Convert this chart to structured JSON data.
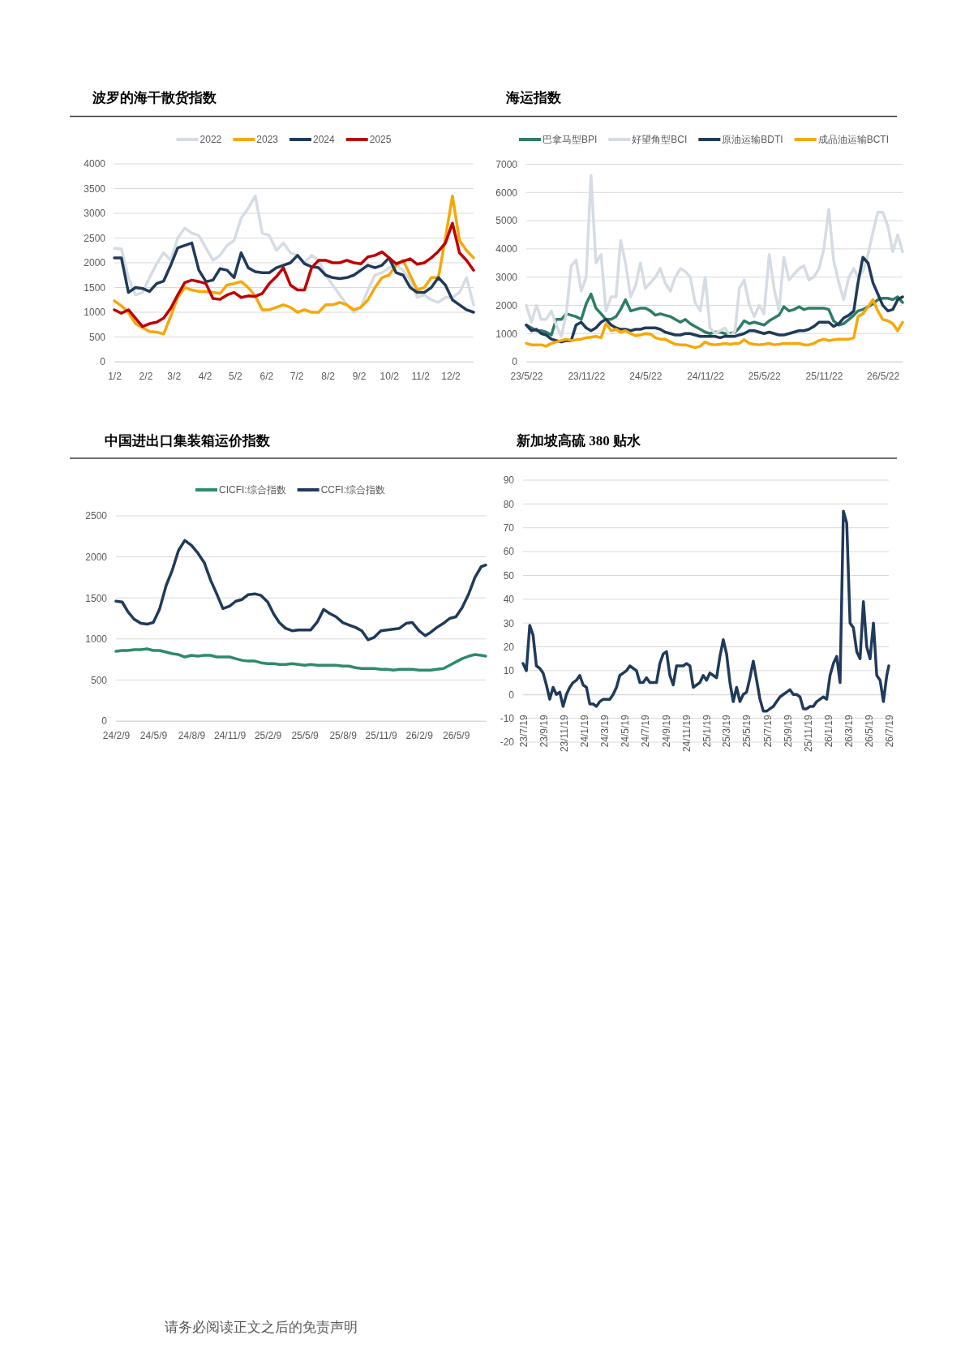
{
  "chart_data": [
    {
      "type": "line",
      "title": "波罗的海干散货指数",
      "legend": "top",
      "grid": "y",
      "x": [
        "--01-02",
        "--01-09",
        "--01-16",
        "--01-23",
        "--01-30",
        "--02-06",
        "--02-13",
        "--02-20",
        "--02-27",
        "--03-06",
        "--03-13",
        "--03-20",
        "--03-27",
        "--04-03",
        "--04-10",
        "--04-17",
        "--04-24",
        "--05-01",
        "--05-08",
        "--05-15",
        "--05-22",
        "--05-29",
        "--06-05",
        "--06-12",
        "--06-19",
        "--06-26",
        "--07-03",
        "--07-10",
        "--07-17",
        "--07-24",
        "--07-31",
        "--08-07",
        "--08-14",
        "--08-21",
        "--08-28",
        "--09-04",
        "--09-11",
        "--09-18",
        "--09-25",
        "--10-02",
        "--10-09",
        "--10-16",
        "--10-23",
        "--10-30",
        "--11-06",
        "--11-13",
        "--11-20",
        "--11-27",
        "--12-04",
        "--12-11",
        "--12-18",
        "--12-25"
      ],
      "xlim": [
        "--01-02",
        "--12-25"
      ],
      "xticks": [
        {
          "value": "--01-02",
          "label": "1/2"
        },
        {
          "value": "--02-02",
          "label": "2/2"
        },
        {
          "value": "--03-02",
          "label": "3/2"
        },
        {
          "value": "--04-02",
          "label": "4/2"
        },
        {
          "value": "--05-02",
          "label": "5/2"
        },
        {
          "value": "--06-02",
          "label": "6/2"
        },
        {
          "value": "--07-02",
          "label": "7/2"
        },
        {
          "value": "--08-02",
          "label": "8/2"
        },
        {
          "value": "--09-02",
          "label": "9/2"
        },
        {
          "value": "--10-02",
          "label": "10/2"
        },
        {
          "value": "--11-02",
          "label": "11/2"
        },
        {
          "value": "--12-02",
          "label": "12/2"
        }
      ],
      "ylim": [
        0,
        4000
      ],
      "yticks": [
        0,
        500,
        1000,
        1500,
        2000,
        2500,
        3000,
        3500,
        4000
      ],
      "series": [
        {
          "name": "2022",
          "color": "#d6dce4",
          "values": [
            2290,
            2280,
            1700,
            1350,
            1400,
            1700,
            1980,
            2200,
            2050,
            2500,
            2700,
            2600,
            2550,
            2300,
            2050,
            2150,
            2350,
            2450,
            2900,
            3100,
            3350,
            2600,
            2550,
            2250,
            2400,
            2200,
            2150,
            2000,
            2150,
            2050,
            1750,
            1550,
            1350,
            1150,
            1000,
            1100,
            1450,
            1750,
            1800,
            1900,
            1950,
            1850,
            1650,
            1300,
            1350,
            1250,
            1200,
            1300,
            1300,
            1400,
            1700,
            1150
          ]
        },
        {
          "name": "2023",
          "color": "#f7a707",
          "values": [
            1230,
            1130,
            1000,
            770,
            690,
            610,
            600,
            560,
            920,
            1300,
            1500,
            1450,
            1420,
            1420,
            1400,
            1380,
            1550,
            1580,
            1620,
            1500,
            1330,
            1050,
            1050,
            1100,
            1150,
            1100,
            1000,
            1050,
            1000,
            1000,
            1150,
            1150,
            1200,
            1150,
            1050,
            1100,
            1250,
            1500,
            1700,
            1750,
            1950,
            2050,
            1750,
            1450,
            1500,
            1700,
            1700,
            2500,
            3350,
            2450,
            2250,
            2100
          ]
        },
        {
          "name": "2024",
          "color": "#203a5a",
          "values": [
            2100,
            2100,
            1400,
            1500,
            1480,
            1420,
            1580,
            1630,
            1950,
            2300,
            2350,
            2400,
            1850,
            1620,
            1650,
            1880,
            1850,
            1700,
            2200,
            1900,
            1820,
            1800,
            1800,
            1900,
            1950,
            2000,
            2150,
            1980,
            1920,
            1900,
            1750,
            1700,
            1680,
            1700,
            1750,
            1850,
            1950,
            1900,
            1950,
            2100,
            1800,
            1750,
            1500,
            1400,
            1400,
            1500,
            1700,
            1550,
            1250,
            1150,
            1050,
            1000
          ]
        },
        {
          "name": "2025",
          "color": "#c00000",
          "values": [
            1050,
            980,
            1050,
            880,
            710,
            770,
            800,
            880,
            1080,
            1350,
            1600,
            1650,
            1620,
            1580,
            1280,
            1260,
            1350,
            1400,
            1300,
            1330,
            1320,
            1380,
            1580,
            1720,
            1900,
            1550,
            1450,
            1450,
            1900,
            2050,
            2050,
            2000,
            2000,
            2050,
            2000,
            1980,
            2120,
            2150,
            2220,
            2100,
            1980,
            2030,
            2080,
            1970,
            2000,
            2100,
            2230,
            2400,
            2800,
            2200,
            2050,
            1850
          ]
        }
      ]
    },
    {
      "type": "line",
      "title": "海运指数",
      "legend": "top",
      "grid": "y",
      "x": [
        "2023-05-22",
        "2023-06-07",
        "2023-06-22",
        "2023-07-07",
        "2023-07-22",
        "2023-08-07",
        "2023-08-22",
        "2023-09-07",
        "2023-09-22",
        "2023-10-07",
        "2023-10-22",
        "2023-11-07",
        "2023-11-22",
        "2023-12-07",
        "2023-12-22",
        "2024-01-07",
        "2024-01-22",
        "2024-02-07",
        "2024-02-22",
        "2024-03-07",
        "2024-03-22",
        "2024-04-07",
        "2024-04-22",
        "2024-05-07",
        "2024-05-22",
        "2024-06-07",
        "2024-06-22",
        "2024-07-07",
        "2024-07-22",
        "2024-08-07",
        "2024-08-22",
        "2024-09-07",
        "2024-09-22",
        "2024-10-07",
        "2024-10-22",
        "2024-11-07",
        "2024-11-22",
        "2024-12-07",
        "2024-12-22",
        "2025-01-07",
        "2025-01-22",
        "2025-02-07",
        "2025-02-22",
        "2025-03-07",
        "2025-03-22",
        "2025-04-07",
        "2025-04-22",
        "2025-05-07",
        "2025-05-22",
        "2025-06-07",
        "2025-06-22",
        "2025-07-07",
        "2025-07-22",
        "2025-08-07",
        "2025-08-22",
        "2025-09-07",
        "2025-09-22",
        "2025-10-07",
        "2025-10-22",
        "2025-11-07",
        "2025-11-22",
        "2025-12-07",
        "2025-12-22",
        "2026-01-07",
        "2026-01-22",
        "2026-02-07",
        "2026-02-22",
        "2026-03-07",
        "2026-03-22",
        "2026-04-07",
        "2026-04-22",
        "2026-05-07",
        "2026-05-22",
        "2026-06-07",
        "2026-06-22",
        "2026-07-07",
        "2026-07-22"
      ],
      "xlim": [
        "2023-05-22",
        "2026-07-22"
      ],
      "xticks": [
        {
          "value": "2023-05-22",
          "label": "23/5/22"
        },
        {
          "value": "2023-11-22",
          "label": "23/11/22"
        },
        {
          "value": "2024-05-22",
          "label": "24/5/22"
        },
        {
          "value": "2024-11-22",
          "label": "24/11/22"
        },
        {
          "value": "2025-05-22",
          "label": "25/5/22"
        },
        {
          "value": "2025-11-22",
          "label": "25/11/22"
        },
        {
          "value": "2026-05-22",
          "label": "26/5/22"
        }
      ],
      "ylim": [
        0,
        7000
      ],
      "yticks": [
        0,
        1000,
        2000,
        3000,
        4000,
        5000,
        6000,
        7000
      ],
      "series": [
        {
          "name": "巴拿马型BPI",
          "color": "#2e7d66",
          "values": [
            1300,
            1200,
            1100,
            1100,
            1050,
            950,
            1500,
            1500,
            1700,
            1650,
            1600,
            1500,
            2050,
            2400,
            1900,
            1700,
            1500,
            1500,
            1600,
            1850,
            2200,
            1800,
            1850,
            1900,
            1900,
            1800,
            1650,
            1700,
            1650,
            1600,
            1500,
            1400,
            1500,
            1350,
            1250,
            1150,
            1050,
            1000,
            1050,
            1050,
            1000,
            1000,
            1050,
            1200,
            1450,
            1350,
            1400,
            1350,
            1300,
            1450,
            1550,
            1650,
            1950,
            1800,
            1850,
            1950,
            1850,
            1900,
            1900,
            1900,
            1900,
            1850,
            1450,
            1300,
            1350,
            1500,
            1650,
            1800,
            1850,
            1950,
            2050,
            2200,
            2250,
            2250,
            2200,
            2300,
            2100
          ]
        },
        {
          "name": "好望角型BCI",
          "color": "#d6dce4",
          "values": [
            2000,
            1400,
            2000,
            1500,
            1500,
            1800,
            1300,
            900,
            1700,
            3400,
            3600,
            2500,
            3000,
            6600,
            3500,
            3800,
            1800,
            2300,
            2300,
            4300,
            3500,
            2300,
            2700,
            3500,
            2600,
            2800,
            3000,
            3300,
            2800,
            2500,
            3000,
            3300,
            3200,
            3000,
            2100,
            1800,
            3000,
            1200,
            1000,
            1100,
            1200,
            900,
            1100,
            2600,
            2900,
            2000,
            1600,
            2000,
            1700,
            3800,
            2600,
            1800,
            3700,
            2900,
            3100,
            3300,
            3400,
            2900,
            3000,
            3300,
            4000,
            5400,
            3600,
            2800,
            2200,
            3000,
            3300,
            3000,
            3200,
            3800,
            4600,
            5300,
            5300,
            4800,
            3900,
            4500,
            3900
          ]
        },
        {
          "name": "原油运输BDTI",
          "color": "#203a5a",
          "values": [
            1300,
            1100,
            1150,
            1000,
            950,
            800,
            750,
            700,
            750,
            750,
            1300,
            1400,
            1200,
            1100,
            1200,
            1400,
            1500,
            1300,
            1200,
            1150,
            1150,
            1100,
            1150,
            1150,
            1200,
            1200,
            1200,
            1150,
            1050,
            1000,
            950,
            950,
            1000,
            1000,
            950,
            900,
            900,
            900,
            900,
            850,
            900,
            900,
            900,
            950,
            1000,
            1100,
            1100,
            1050,
            1000,
            1050,
            1000,
            950,
            950,
            1000,
            1050,
            1100,
            1100,
            1150,
            1250,
            1400,
            1400,
            1400,
            1250,
            1350,
            1550,
            1650,
            1800,
            2800,
            3700,
            3500,
            2800,
            2400,
            2000,
            1800,
            1850,
            2200,
            2300
          ]
        },
        {
          "name": "成品油运输BCTI",
          "color": "#f7a707",
          "values": [
            650,
            600,
            600,
            600,
            550,
            650,
            700,
            750,
            800,
            750,
            780,
            800,
            850,
            870,
            900,
            850,
            1350,
            1100,
            1150,
            1050,
            1100,
            1000,
            920,
            950,
            1000,
            980,
            850,
            800,
            800,
            700,
            620,
            600,
            600,
            550,
            500,
            550,
            700,
            620,
            600,
            620,
            650,
            620,
            650,
            650,
            780,
            650,
            620,
            600,
            620,
            650,
            600,
            620,
            650,
            650,
            650,
            650,
            600,
            600,
            650,
            750,
            800,
            750,
            780,
            800,
            800,
            800,
            850,
            1600,
            1700,
            1950,
            2200,
            1800,
            1500,
            1450,
            1350,
            1100,
            1400
          ]
        }
      ]
    },
    {
      "type": "line",
      "title": "中国进出口集装箱运价指数",
      "legend": "top",
      "grid": "y",
      "x": [
        "2024-02-09",
        "2024-02-24",
        "2024-03-09",
        "2024-03-24",
        "2024-04-09",
        "2024-04-24",
        "2024-05-09",
        "2024-05-24",
        "2024-06-09",
        "2024-06-24",
        "2024-07-09",
        "2024-07-24",
        "2024-08-09",
        "2024-08-24",
        "2024-09-09",
        "2024-09-24",
        "2024-10-09",
        "2024-10-24",
        "2024-11-09",
        "2024-11-24",
        "2024-12-09",
        "2024-12-24",
        "2025-01-09",
        "2025-01-24",
        "2025-02-09",
        "2025-02-24",
        "2025-03-09",
        "2025-03-24",
        "2025-04-09",
        "2025-04-24",
        "2025-05-09",
        "2025-05-24",
        "2025-06-09",
        "2025-06-24",
        "2025-07-09",
        "2025-07-24",
        "2025-08-09",
        "2025-08-24",
        "2025-09-09",
        "2025-09-24",
        "2025-10-09",
        "2025-10-24",
        "2025-11-09",
        "2025-11-24",
        "2025-12-09",
        "2025-12-24",
        "2026-01-09",
        "2026-01-24",
        "2026-02-09",
        "2026-02-24",
        "2026-03-09",
        "2026-03-24",
        "2026-04-09",
        "2026-04-24",
        "2026-05-09",
        "2026-05-24",
        "2026-06-09",
        "2026-06-24",
        "2026-07-09",
        "2026-07-20"
      ],
      "xlim": [
        "2024-02-09",
        "2026-07-20"
      ],
      "xticks": [
        {
          "value": "2024-02-09",
          "label": "24/2/9"
        },
        {
          "value": "2024-05-09",
          "label": "24/5/9"
        },
        {
          "value": "2024-08-09",
          "label": "24/8/9"
        },
        {
          "value": "2024-11-09",
          "label": "24/11/9"
        },
        {
          "value": "2025-02-09",
          "label": "25/2/9"
        },
        {
          "value": "2025-05-09",
          "label": "25/5/9"
        },
        {
          "value": "2025-08-09",
          "label": "25/8/9"
        },
        {
          "value": "2025-11-09",
          "label": "25/11/9"
        },
        {
          "value": "2026-02-09",
          "label": "26/2/9"
        },
        {
          "value": "2026-05-09",
          "label": "26/5/9"
        }
      ],
      "ylim": [
        0,
        2500
      ],
      "yticks": [
        0,
        500,
        1000,
        1500,
        2000,
        2500
      ],
      "series": [
        {
          "name": "CICFI:综合指数",
          "color": "#2e8a6e",
          "values": [
            850,
            860,
            860,
            870,
            870,
            880,
            860,
            860,
            840,
            820,
            810,
            780,
            800,
            790,
            800,
            800,
            780,
            780,
            780,
            760,
            740,
            730,
            730,
            710,
            700,
            700,
            690,
            690,
            700,
            690,
            680,
            690,
            680,
            680,
            680,
            680,
            670,
            670,
            650,
            640,
            640,
            640,
            630,
            630,
            620,
            630,
            630,
            630,
            620,
            620,
            620,
            630,
            640,
            680,
            720,
            760,
            790,
            810,
            800,
            790
          ]
        },
        {
          "name": "CCFI:综合指数",
          "color": "#203a5a",
          "values": [
            1460,
            1450,
            1330,
            1240,
            1190,
            1180,
            1200,
            1360,
            1650,
            1840,
            2080,
            2200,
            2140,
            2050,
            1930,
            1720,
            1550,
            1370,
            1400,
            1460,
            1480,
            1540,
            1550,
            1530,
            1450,
            1300,
            1200,
            1130,
            1100,
            1110,
            1110,
            1110,
            1210,
            1360,
            1310,
            1270,
            1200,
            1170,
            1140,
            1100,
            990,
            1020,
            1100,
            1110,
            1120,
            1130,
            1190,
            1200,
            1100,
            1040,
            1080,
            1140,
            1190,
            1250,
            1270,
            1380,
            1550,
            1750,
            1880,
            1900
          ]
        }
      ]
    },
    {
      "type": "line",
      "title": "新加坡高硫 380 贴水",
      "grid": "y",
      "annotations": [
        "请务必阅读正文之后的免责声明"
      ],
      "x": [
        "2023-07-19",
        "2023-07-29",
        "2023-08-08",
        "2023-08-18",
        "2023-08-28",
        "2023-09-07",
        "2023-09-17",
        "2023-09-27",
        "2023-10-07",
        "2023-10-17",
        "2023-10-27",
        "2023-11-06",
        "2023-11-16",
        "2023-11-26",
        "2023-12-06",
        "2023-12-16",
        "2023-12-26",
        "2024-01-05",
        "2024-01-15",
        "2024-01-25",
        "2024-02-04",
        "2024-02-14",
        "2024-02-24",
        "2024-03-05",
        "2024-03-15",
        "2024-03-25",
        "2024-04-04",
        "2024-04-14",
        "2024-04-24",
        "2024-05-04",
        "2024-05-14",
        "2024-05-24",
        "2024-06-03",
        "2024-06-13",
        "2024-06-23",
        "2024-07-03",
        "2024-07-13",
        "2024-07-23",
        "2024-08-02",
        "2024-08-12",
        "2024-08-22",
        "2024-09-01",
        "2024-09-11",
        "2024-09-21",
        "2024-10-01",
        "2024-10-11",
        "2024-10-21",
        "2024-10-31",
        "2024-11-10",
        "2024-11-20",
        "2024-11-30",
        "2024-12-10",
        "2024-12-20",
        "2024-12-30",
        "2025-01-09",
        "2025-01-19",
        "2025-01-29",
        "2025-02-08",
        "2025-02-18",
        "2025-02-28",
        "2025-03-10",
        "2025-03-20",
        "2025-03-30",
        "2025-04-09",
        "2025-04-19",
        "2025-04-29",
        "2025-05-09",
        "2025-05-19",
        "2025-05-29",
        "2025-06-08",
        "2025-06-18",
        "2025-06-28",
        "2025-07-08",
        "2025-07-18",
        "2025-07-28",
        "2025-08-07",
        "2025-08-17",
        "2025-08-27",
        "2025-09-06",
        "2025-09-16",
        "2025-09-26",
        "2025-10-06",
        "2025-10-16",
        "2025-10-26",
        "2025-11-05",
        "2025-11-15",
        "2025-11-25",
        "2025-12-05",
        "2025-12-15",
        "2025-12-25",
        "2026-01-04",
        "2026-01-14",
        "2026-01-24",
        "2026-02-03",
        "2026-02-13",
        "2026-02-23",
        "2026-03-05",
        "2026-03-15",
        "2026-03-25",
        "2026-04-04",
        "2026-04-14",
        "2026-04-24",
        "2026-05-04",
        "2026-05-14",
        "2026-05-24",
        "2026-06-03",
        "2026-06-13",
        "2026-06-23",
        "2026-07-03",
        "2026-07-13",
        "2026-07-19"
      ],
      "xlim": [
        "2023-07-19",
        "2026-07-19"
      ],
      "xticks": [
        {
          "value": "2023-07-19",
          "label": "23/7/19"
        },
        {
          "value": "2023-09-19",
          "label": "23/9/19"
        },
        {
          "value": "2023-11-19",
          "label": "23/11/19"
        },
        {
          "value": "2024-01-19",
          "label": "24/1/19"
        },
        {
          "value": "2024-03-19",
          "label": "24/3/19"
        },
        {
          "value": "2024-05-19",
          "label": "24/5/19"
        },
        {
          "value": "2024-07-19",
          "label": "24/7/19"
        },
        {
          "value": "2024-09-19",
          "label": "24/9/19"
        },
        {
          "value": "2024-11-19",
          "label": "24/11/19"
        },
        {
          "value": "2025-01-19",
          "label": "25/1/19"
        },
        {
          "value": "2025-03-19",
          "label": "25/3/19"
        },
        {
          "value": "2025-05-19",
          "label": "25/5/19"
        },
        {
          "value": "2025-07-19",
          "label": "25/7/19"
        },
        {
          "value": "2025-09-19",
          "label": "25/9/19"
        },
        {
          "value": "2025-11-19",
          "label": "25/11/19"
        },
        {
          "value": "2026-01-19",
          "label": "26/1/19"
        },
        {
          "value": "2026-03-19",
          "label": "26/3/19"
        },
        {
          "value": "2026-05-19",
          "label": "26/5/19"
        },
        {
          "value": "2026-07-19",
          "label": "26/7/19"
        }
      ],
      "ylim": [
        -20,
        90
      ],
      "yticks": [
        -20,
        -10,
        0,
        10,
        20,
        30,
        40,
        50,
        60,
        70,
        80,
        90
      ],
      "series": [
        {
          "color": "#203a5a",
          "values": [
            13,
            10,
            29,
            25,
            12,
            11,
            9,
            4,
            -2,
            3,
            0,
            1,
            -5,
            0,
            3,
            5,
            6,
            8,
            4,
            3,
            -4,
            -4,
            -5,
            -3,
            -2,
            -2,
            -2,
            0,
            3,
            8,
            9,
            10,
            12,
            11,
            10,
            5,
            5,
            7,
            5,
            5,
            5,
            13,
            17,
            18,
            8,
            4,
            12,
            12,
            12,
            13,
            12,
            3,
            4,
            5,
            8,
            6,
            9,
            8,
            7,
            16,
            23,
            17,
            5,
            -3,
            3,
            -3,
            0,
            1,
            7,
            14,
            6,
            -2,
            -7,
            -7,
            -6,
            -5,
            -3,
            -1,
            0,
            1,
            2,
            0,
            0,
            -1,
            -6,
            -6,
            -5,
            -5,
            -3,
            -2,
            -1,
            -2,
            8,
            13,
            16,
            5,
            77,
            72,
            30,
            28,
            18,
            15,
            39,
            20,
            15,
            30,
            8,
            6,
            -3,
            8,
            12
          ]
        }
      ]
    }
  ]
}
